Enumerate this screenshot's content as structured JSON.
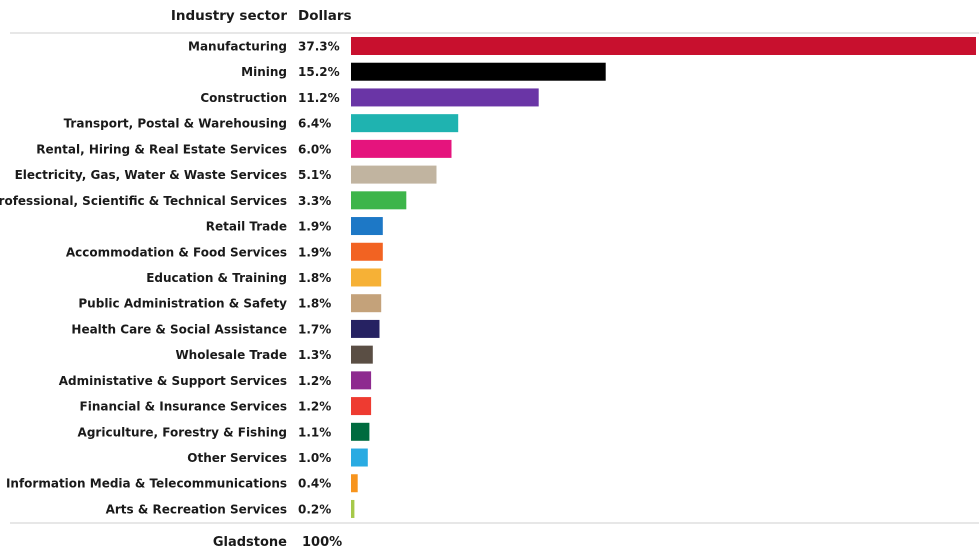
{
  "header": {
    "sector_label": "Industry sector",
    "value_label": "Dollars"
  },
  "total": {
    "label": "Gladstone",
    "value": "100%"
  },
  "chart_data": {
    "type": "bar",
    "orientation": "horizontal",
    "xlim": [
      0,
      37.3
    ],
    "categories": [
      "Manufacturing",
      "Mining",
      "Construction",
      "Transport, Postal & Warehousing",
      "Rental, Hiring & Real Estate Services",
      "Electricity, Gas, Water & Waste Services",
      "Professional, Scientific & Technical Services",
      "Retail Trade",
      "Accommodation & Food Services",
      "Education & Training",
      "Public Administration & Safety",
      "Health Care & Social Assistance",
      "Wholesale Trade",
      "Administative & Support Services",
      "Financial & Insurance Services",
      "Agriculture, Forestry & Fishing",
      "Other Services",
      "Information Media & Telecommunications",
      "Arts & Recreation Services"
    ],
    "values": [
      37.3,
      15.2,
      11.2,
      6.4,
      6.0,
      5.1,
      3.3,
      1.9,
      1.9,
      1.8,
      1.8,
      1.7,
      1.3,
      1.2,
      1.2,
      1.1,
      1.0,
      0.4,
      0.2
    ],
    "value_labels": [
      "37.3%",
      "15.2%",
      "11.2%",
      "6.4%",
      "6.0%",
      "5.1%",
      "3.3%",
      "1.9%",
      "1.9%",
      "1.8%",
      "1.8%",
      "1.7%",
      "1.3%",
      "1.2%",
      "1.2%",
      "1.1%",
      "1.0%",
      "0.4%",
      "0.2%"
    ],
    "colors": [
      "#c8102e",
      "#000000",
      "#6a35a6",
      "#1fb3b0",
      "#e5147d",
      "#c1b4a0",
      "#3db54a",
      "#1d78c6",
      "#f26322",
      "#f6b136",
      "#c4a27a",
      "#262262",
      "#5a4e44",
      "#8e2a8f",
      "#ee3b31",
      "#006b3f",
      "#29abe2",
      "#f7941d",
      "#a6c94a"
    ]
  }
}
